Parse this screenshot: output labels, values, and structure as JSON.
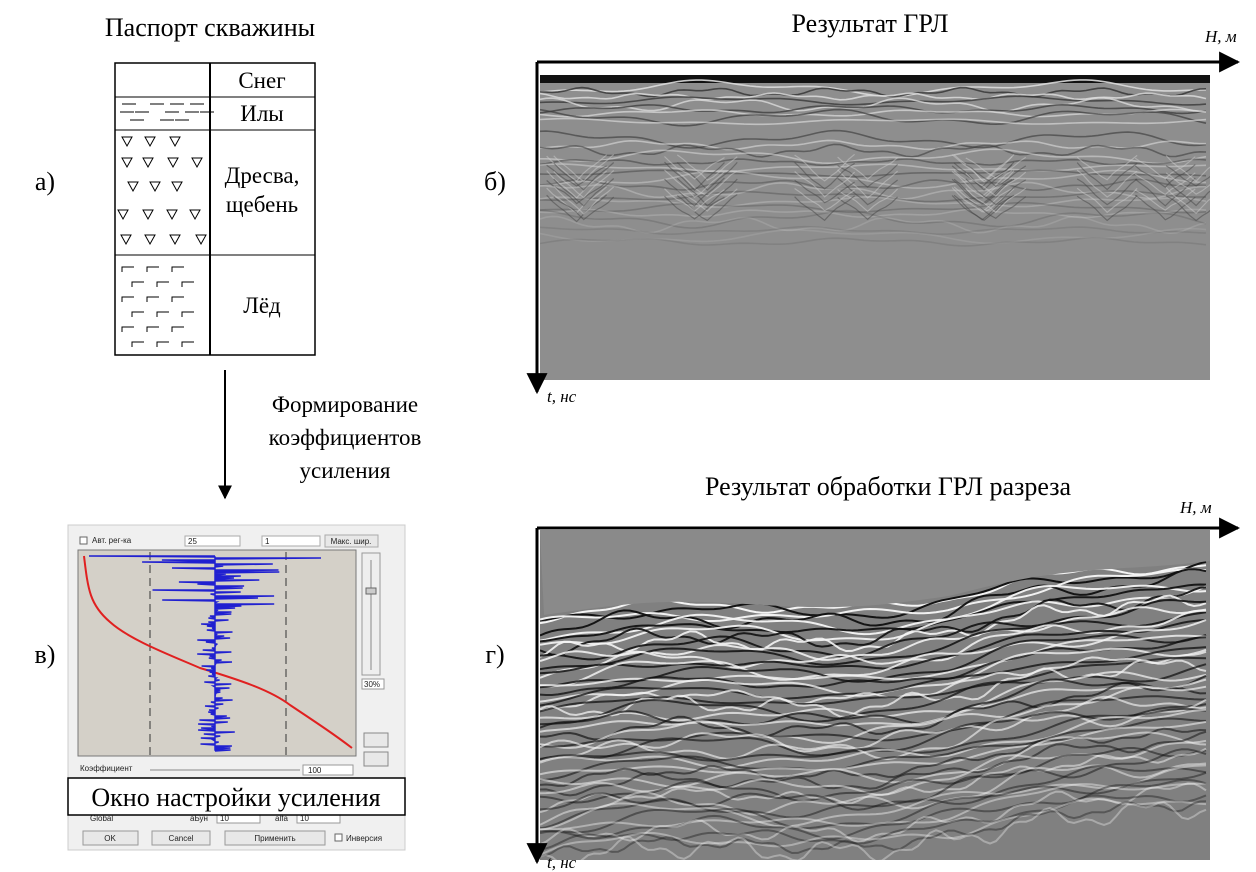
{
  "well_passport": {
    "title": "Паспорт скважины",
    "panel_label": "а)",
    "layers": [
      [
        "Снег"
      ],
      [
        "Илы"
      ],
      [
        "Дресва,",
        "щебень"
      ],
      [
        "Лёд"
      ]
    ]
  },
  "arrow_caption": [
    "Формирование",
    "коэффициентов",
    "усиления"
  ],
  "gain_window": {
    "panel_label": "в)",
    "caption": "Окно настройки усиления",
    "controls": {
      "auto": "Авт. рег-ка",
      "field1": "25",
      "field2": "1",
      "max_button": "Макс. шир.",
      "percent": "30%",
      "coefficient": "Коэффициент",
      "coefficient_value": "100",
      "global": "Global",
      "param1": "aБун",
      "param1_value": "10",
      "param2": "alfa",
      "param2_value": "10",
      "ok": "OK",
      "cancel": "Cancel",
      "apply": "Применить",
      "invert": "Инверсия"
    }
  },
  "radar_raw": {
    "panel_label": "б)",
    "title": "Результат ГРЛ",
    "x_axis": "Н, м",
    "y_axis": "t, нс"
  },
  "radar_processed": {
    "panel_label": "г)",
    "title": "Результат обработки ГРЛ разреза",
    "x_axis": "Н, м",
    "y_axis": "t, нс"
  }
}
